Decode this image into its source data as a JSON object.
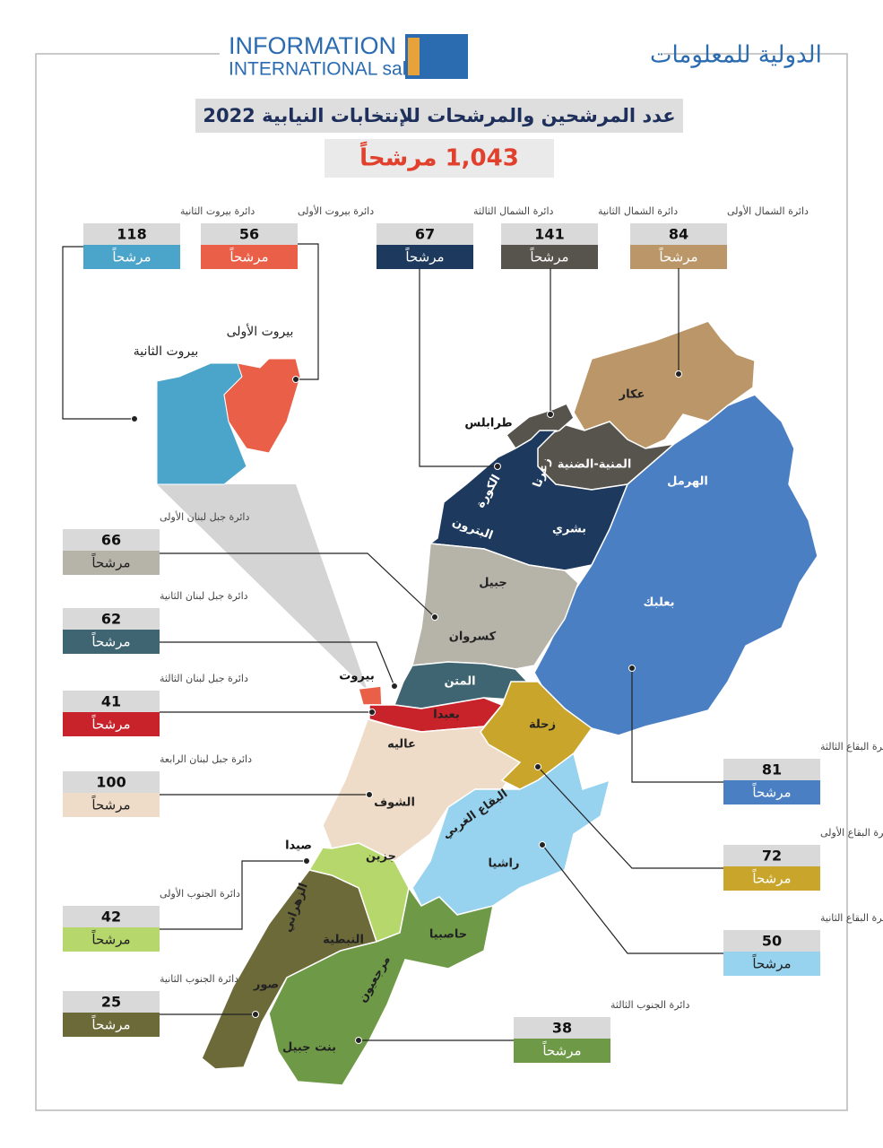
{
  "header": {
    "logo_en": [
      "INFORMATION",
      "INTERNATIONAL sal"
    ],
    "logo_ar": "الدولية للمعلومات",
    "title": "عدد المرشحين والمرشحات للإنتخابات النيابية 2022",
    "total": "1,043 مرشحاً"
  },
  "districts": [
    {
      "label": "دائرة بيروت الثانية",
      "count": 118,
      "unit": "مرشحاً",
      "color": "#4ba4c9"
    },
    {
      "label": "دائرة بيروت الأولى",
      "count": 56,
      "unit": "مرشحاً",
      "color": "#ea5f48"
    },
    {
      "label": "دائرة الشمال الثالثة",
      "count": 67,
      "unit": "مرشحاً",
      "color": "#1d3a5e"
    },
    {
      "label": "دائرة الشمال الثانية",
      "count": 141,
      "unit": "مرشحاً",
      "color": "#57534d"
    },
    {
      "label": "دائرة الشمال الأولى",
      "count": 84,
      "unit": "مرشحاً",
      "color": "#bb9668"
    },
    {
      "label": "دائرة جبل لبنان الأولى",
      "count": 66,
      "unit": "مرشحاً",
      "color": "#b6b3a9"
    },
    {
      "label": "دائرة جبل لبنان الثانية",
      "count": 62,
      "unit": "مرشحاً",
      "color": "#3e6571"
    },
    {
      "label": "دائرة جبل لبنان الثالثة",
      "count": 41,
      "unit": "مرشحاً",
      "color": "#c8232b"
    },
    {
      "label": "دائرة جبل لبنان الرابعة",
      "count": 100,
      "unit": "مرشحاً",
      "color": "#efdcc8"
    },
    {
      "label": "دائرة الجنوب الأولى",
      "count": 42,
      "unit": "مرشحاً",
      "color": "#b6d76b"
    },
    {
      "label": "دائرة الجنوب الثانية",
      "count": 25,
      "unit": "مرشحاً",
      "color": "#6c6a39"
    },
    {
      "label": "دائرة الجنوب الثالثة",
      "count": 38,
      "unit": "مرشحاً",
      "color": "#6e9a48"
    },
    {
      "label": "دائرة البقاع الثالثة",
      "count": 81,
      "unit": "مرشحاً",
      "color": "#4a7fc4"
    },
    {
      "label": "دائرة البقاع الأولى",
      "count": 72,
      "unit": "مرشحاً",
      "color": "#c9a52b"
    },
    {
      "label": "دائرة البقاع الثانية",
      "count": 50,
      "unit": "مرشحاً",
      "color": "#97d3ef"
    }
  ],
  "map_labels": [
    "عكار",
    "طرابلس",
    "المنية-الضنية",
    "زغرتا",
    "الكورة",
    "بشري",
    "البترون",
    "الهرمل",
    "جبيل",
    "كسروان",
    "بعلبك",
    "المتن",
    "بيروت",
    "بعبدا",
    "زحلة",
    "عاليه",
    "الشوف",
    "البقاع الغربي",
    "راشيا",
    "صيدا",
    "جزين",
    "الزهراني",
    "النبطية",
    "حاصبيا",
    "مرجعيون",
    "صور",
    "بنت جبيل"
  ],
  "beirut_inset": {
    "labels": [
      "بيروت الأولى",
      "بيروت الثانية"
    ]
  }
}
